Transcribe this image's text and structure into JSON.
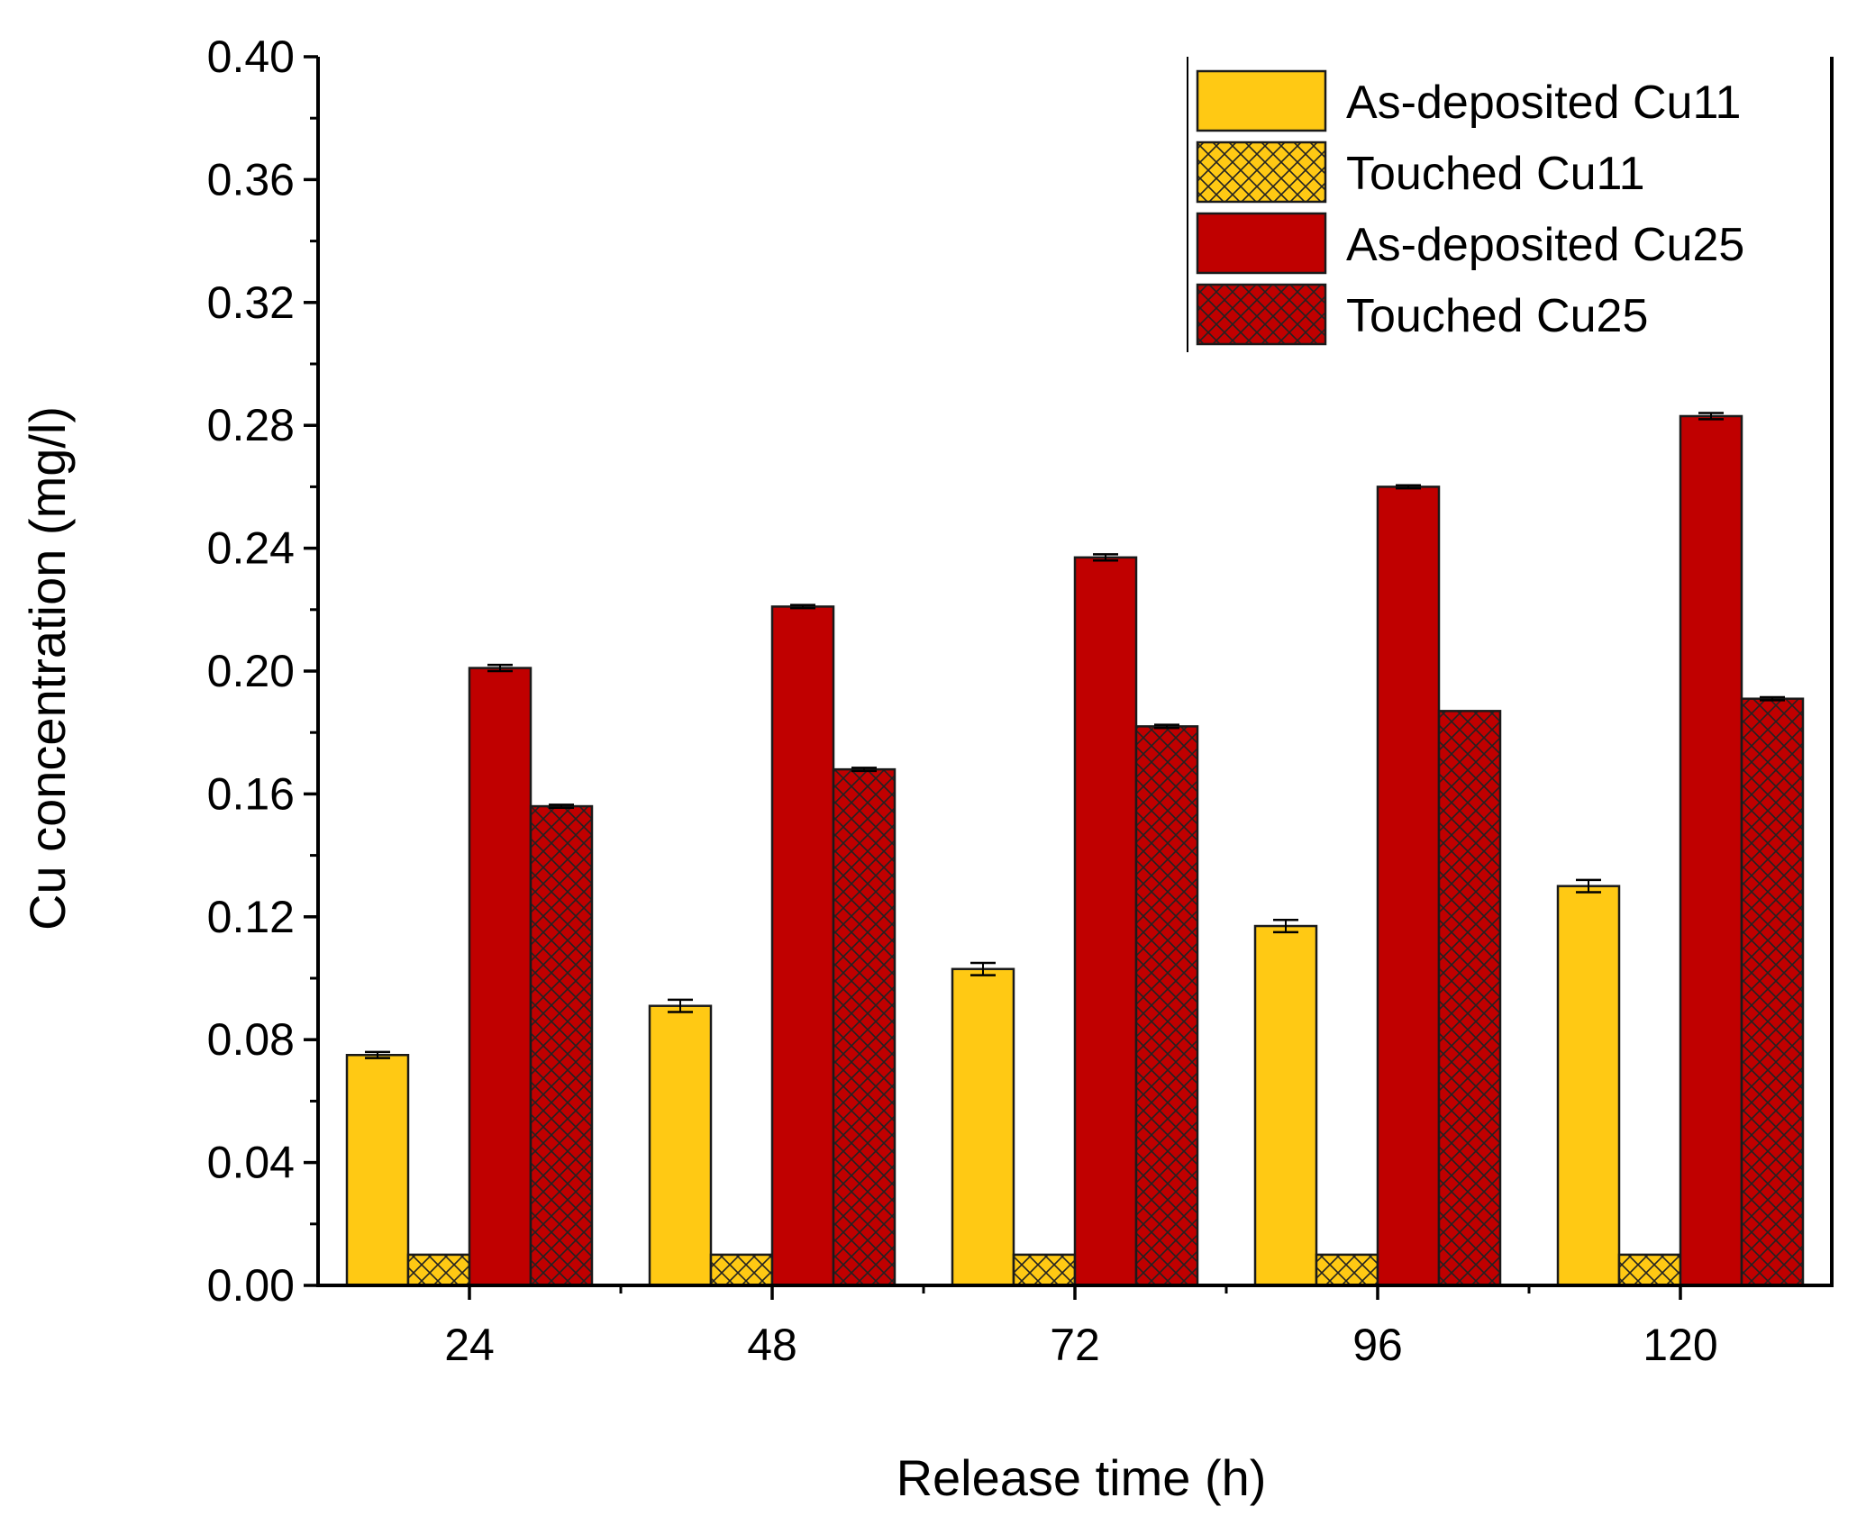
{
  "chart_data": {
    "type": "bar",
    "title": "",
    "xlabel": "Release time (h)",
    "ylabel": "Cu concentration (mg/l)",
    "categories": [
      "24",
      "48",
      "72",
      "96",
      "120"
    ],
    "ylim": [
      0,
      0.4
    ],
    "yticks": [
      "0.00",
      "0.04",
      "0.08",
      "0.12",
      "0.16",
      "0.20",
      "0.24",
      "0.28",
      "0.32",
      "0.36",
      "0.40"
    ],
    "grid": false,
    "legend_position": "top-right",
    "series": [
      {
        "name": "As-deposited Cu11",
        "values": [
          0.075,
          0.091,
          0.103,
          0.117,
          0.13
        ],
        "errors": [
          0.001,
          0.002,
          0.002,
          0.002,
          0.002
        ],
        "color": "#FFC914",
        "pattern": "solid"
      },
      {
        "name": "Touched Cu11",
        "values": [
          0.01,
          0.01,
          0.01,
          0.01,
          0.01
        ],
        "errors": [
          0,
          0,
          0,
          0,
          0
        ],
        "color": "#FFC914",
        "pattern": "crosshatch"
      },
      {
        "name": "As-deposited Cu25",
        "values": [
          0.201,
          0.221,
          0.237,
          0.26,
          0.283
        ],
        "errors": [
          0.001,
          0.0005,
          0.001,
          0.0005,
          0.001
        ],
        "color": "#C00000",
        "pattern": "solid"
      },
      {
        "name": "Touched Cu25",
        "values": [
          0.156,
          0.168,
          0.182,
          0.187,
          0.191
        ],
        "errors": [
          0.0005,
          0.0005,
          0.0005,
          0,
          0.0005
        ],
        "color": "#C00000",
        "pattern": "crosshatch"
      }
    ]
  }
}
